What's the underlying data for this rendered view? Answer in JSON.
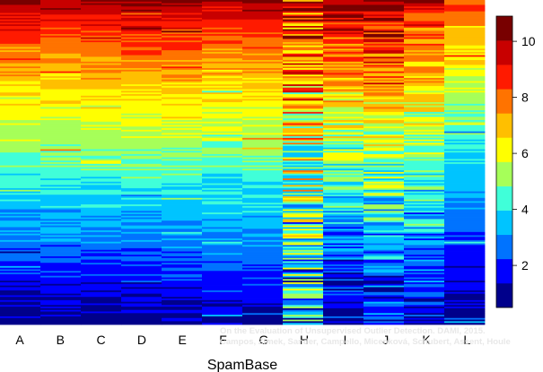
{
  "chart_data": {
    "type": "heatmap",
    "xlabel": "SpamBase",
    "columns": [
      "A",
      "B",
      "C",
      "D",
      "E",
      "F",
      "G",
      "H",
      "I",
      "J",
      "K",
      "L"
    ],
    "colorbar": {
      "min": 0.5,
      "max": 10.9,
      "ticks": [
        2,
        4,
        6,
        8,
        10
      ],
      "bands": [
        "#00008b",
        "#0000ff",
        "#0073ff",
        "#00c4ff",
        "#40ffd9",
        "#a6ff59",
        "#ffff00",
        "#ffbf00",
        "#ff7300",
        "#ff1a00",
        "#c80000",
        "#780000"
      ]
    },
    "row_count": 200,
    "column_profiles": {
      "A": {
        "start": 10.2,
        "end": 0.8,
        "noise": 0.55
      },
      "B": {
        "start": 10.0,
        "end": 1.0,
        "noise": 0.55
      },
      "C": {
        "start": 10.2,
        "end": 0.9,
        "noise": 0.5
      },
      "D": {
        "start": 10.4,
        "end": 0.9,
        "noise": 0.5
      },
      "E": {
        "start": 10.3,
        "end": 1.0,
        "noise": 0.5
      },
      "F": {
        "start": 9.8,
        "end": 1.2,
        "noise": 0.6
      },
      "G": {
        "start": 10.0,
        "end": 1.0,
        "noise": 0.55
      },
      "H": {
        "start": 9.5,
        "end": 3.0,
        "noise": 2.6
      },
      "I": {
        "start": 10.3,
        "end": 1.0,
        "noise": 1.3
      },
      "J": {
        "start": 10.6,
        "end": 1.5,
        "noise": 1.4
      },
      "K": {
        "start": 9.5,
        "end": 1.5,
        "noise": 1.1
      },
      "L": {
        "start": 8.5,
        "end": 0.7,
        "noise": 0.5
      }
    },
    "grid": false,
    "legend": "right"
  },
  "watermark": {
    "line1": "On the Evaluation of Unsupervised Outlier Detection. DAMI, 2015.",
    "line2": "Campos, Zimek, Sander, Campello, Micenková, Schubert, Assent, Houle"
  }
}
